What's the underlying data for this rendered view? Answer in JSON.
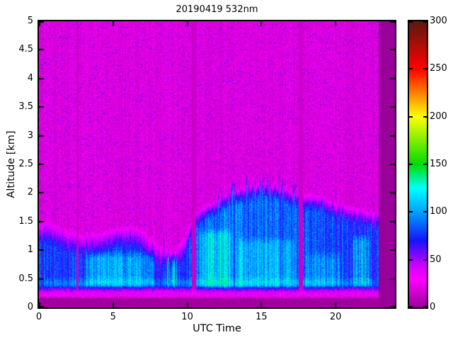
{
  "chart_data": {
    "type": "heatmap",
    "title": "20190419 532nm",
    "xlabel": "UTC Time",
    "ylabel": "Altitude [km]",
    "x_range": [
      0,
      24
    ],
    "x_ticks": [
      0,
      5,
      10,
      15,
      20
    ],
    "y_range": [
      0,
      5
    ],
    "y_ticks": [
      0,
      0.5,
      1,
      1.5,
      2,
      2.5,
      3,
      3.5,
      4,
      4.5,
      5
    ],
    "grid": false,
    "colorbar": {
      "range": [
        0,
        300
      ],
      "ticks": [
        0,
        50,
        100,
        150,
        200,
        250,
        300
      ],
      "position": "right",
      "stops": [
        [
          0,
          "#990099"
        ],
        [
          30,
          "#FF00FF"
        ],
        [
          45,
          "#C800FF"
        ],
        [
          70,
          "#1414FF"
        ],
        [
          100,
          "#00A0FF"
        ],
        [
          125,
          "#00FFFF"
        ],
        [
          150,
          "#00DC00"
        ],
        [
          200,
          "#FFFF00"
        ],
        [
          250,
          "#FF0000"
        ],
        [
          300,
          "#5A1910"
        ]
      ]
    },
    "features": {
      "background_value": 20,
      "no_data_start_utc": 22.9,
      "no_data_value": 0,
      "gap_times_utc": [
        {
          "t": 2.6,
          "width": 0.18
        },
        {
          "t": 10.45,
          "width": 0.26
        },
        {
          "t": 17.65,
          "width": 0.3
        }
      ],
      "gap_value": 12,
      "ground_band_top_km": 0.16,
      "surface_band": {
        "center_km": 0.24,
        "sigma_km": 0.075,
        "amp": 16
      },
      "boundary_layer_top_km": [
        [
          0,
          1.5
        ],
        [
          0.7,
          1.52
        ],
        [
          1.5,
          1.42
        ],
        [
          2.3,
          1.32
        ],
        [
          3,
          1.28
        ],
        [
          4,
          1.33
        ],
        [
          5,
          1.4
        ],
        [
          6,
          1.45
        ],
        [
          7,
          1.38
        ],
        [
          7.7,
          1.18
        ],
        [
          8.5,
          1.02
        ],
        [
          9.2,
          1.02
        ],
        [
          9.8,
          1.25
        ],
        [
          10.4,
          1.6
        ],
        [
          11,
          1.75
        ],
        [
          12,
          1.9
        ],
        [
          13,
          2.05
        ],
        [
          14,
          2.12
        ],
        [
          15,
          2.18
        ],
        [
          16,
          2.15
        ],
        [
          17,
          2.05
        ],
        [
          18,
          2.0
        ],
        [
          19,
          1.95
        ],
        [
          20,
          1.85
        ],
        [
          21,
          1.78
        ],
        [
          22,
          1.72
        ],
        [
          23,
          1.65
        ]
      ],
      "layer_intensity": [
        [
          0,
          78
        ],
        [
          3,
          76
        ],
        [
          5,
          78
        ],
        [
          7,
          74
        ],
        [
          8.5,
          68
        ],
        [
          9.5,
          70
        ],
        [
          10.5,
          84
        ],
        [
          12,
          88
        ],
        [
          14,
          88
        ],
        [
          16,
          86
        ],
        [
          17.4,
          84
        ],
        [
          18,
          80
        ],
        [
          20,
          76
        ],
        [
          22,
          76
        ],
        [
          23,
          72
        ]
      ],
      "enhanced_regions": [
        {
          "t": [
            3.0,
            7.9
          ],
          "a": [
            0.3,
            1.0
          ],
          "amp": 28,
          "streaky": 0.35
        },
        {
          "t": [
            8.25,
            9.65
          ],
          "a": [
            0.3,
            0.95
          ],
          "amp": 55,
          "streaky": 0.85
        },
        {
          "t": [
            10.55,
            13.2
          ],
          "a": [
            0.3,
            1.4
          ],
          "amp": 40,
          "streaky": 0.65
        },
        {
          "t": [
            13.2,
            17.45
          ],
          "a": [
            0.3,
            1.25
          ],
          "amp": 26,
          "streaky": 0.6
        },
        {
          "t": [
            17.8,
            20.6
          ],
          "a": [
            0.3,
            1.0
          ],
          "amp": 20,
          "streaky": 0.5
        },
        {
          "t": [
            20.9,
            22.4
          ],
          "a": [
            0.3,
            1.3
          ],
          "amp": 48,
          "streaky": 0.85
        },
        {
          "t": [
            0,
            22.9
          ],
          "a": [
            0.3,
            0.55
          ],
          "amp": 22,
          "streaky": 0.25
        }
      ]
    }
  }
}
